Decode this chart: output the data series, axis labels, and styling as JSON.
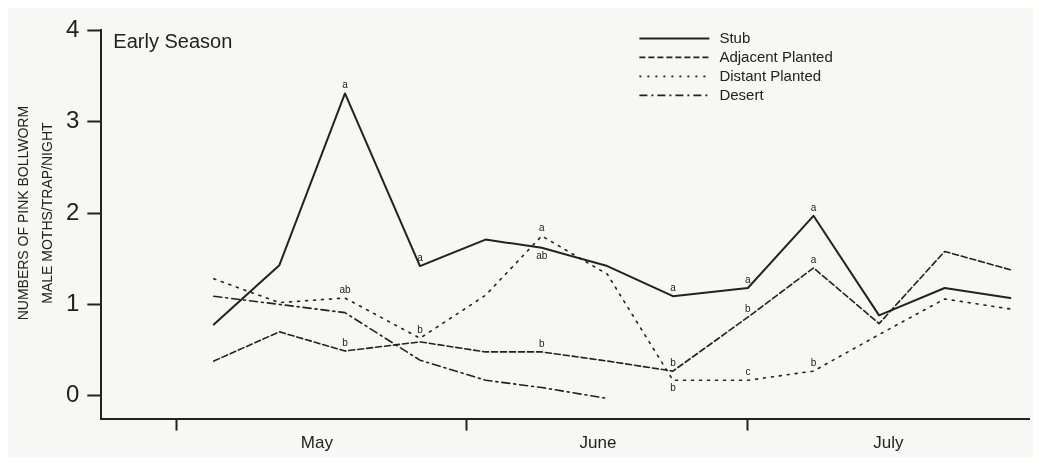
{
  "chart_data": {
    "type": "line",
    "title": "Early Season",
    "ylabel": "NUMBERS OF PINK BOLLWORM\nMALE MOTHS/TRAP/NIGHT",
    "x": [
      "--05-05",
      "--05-12",
      "--05-19",
      "--05-27",
      "--06-03",
      "--06-09",
      "--06-16",
      "--06-23",
      "--07-01",
      "--07-08",
      "--07-15",
      "--07-22",
      "--07-29"
    ],
    "series": [
      {
        "name": "Stub",
        "color": "#222222",
        "line_style": "solid",
        "values": [
          0.78,
          1.43,
          3.31,
          1.42,
          1.71,
          1.62,
          1.42,
          1.09,
          1.18,
          1.97,
          0.88,
          1.18,
          1.07
        ]
      },
      {
        "name": "Adjacent Planted",
        "color": "#222222",
        "line_style": "dashed",
        "values": [
          0.38,
          0.7,
          0.49,
          0.59,
          0.48,
          0.48,
          0.38,
          0.27,
          0.86,
          1.4,
          0.79,
          1.58,
          1.38
        ]
      },
      {
        "name": "Distant Planted",
        "color": "#222222",
        "line_style": "dotted",
        "values": [
          1.28,
          1.02,
          1.07,
          0.63,
          1.1,
          1.75,
          1.33,
          0.17,
          0.17,
          0.27,
          0.67,
          1.06,
          0.95
        ]
      },
      {
        "name": "Desert",
        "color": "#222222",
        "line_style": "dashdot",
        "values": [
          1.09,
          1.0,
          0.91,
          0.39,
          0.17,
          0.09,
          -0.03,
          null,
          null,
          null,
          null,
          null,
          null
        ]
      }
    ],
    "xlim": [
      "--04-23",
      "--07-31"
    ],
    "xticks": [
      {
        "value": "--05-01",
        "label": null
      },
      {
        "value": "--05-16",
        "label": "May"
      },
      {
        "value": "--06-01",
        "label": null
      },
      {
        "value": "--06-15",
        "label": "June"
      },
      {
        "value": "--07-01",
        "label": null
      },
      {
        "value": "--07-16",
        "label": "July"
      }
    ],
    "ylim": [
      -0.25,
      4
    ],
    "yticks": [
      0,
      1,
      2,
      3,
      4
    ],
    "grid": false,
    "legend": "top right",
    "marker": "none",
    "annotations": [
      {
        "text": "a",
        "x": "--05-19",
        "y": 3.31
      },
      {
        "text": "ab",
        "x": "--05-19",
        "y": 1.07
      },
      {
        "text": "b",
        "x": "--05-19",
        "y": 0.49
      },
      {
        "text": "a",
        "x": "--05-27",
        "y": 1.42
      },
      {
        "text": "b",
        "x": "--05-27",
        "y": 0.63
      },
      {
        "text": "a",
        "x": "--06-09",
        "y": 1.75
      },
      {
        "text": "ab",
        "x": "--06-09",
        "y": 1.62
      },
      {
        "text": "b",
        "x": "--06-09",
        "y": 0.48
      },
      {
        "text": "a",
        "x": "--06-23",
        "y": 1.09
      },
      {
        "text": "b",
        "x": "--06-23",
        "y": 0.27
      },
      {
        "text": "b",
        "x": "--06-23",
        "y": 0.17
      },
      {
        "text": "a",
        "x": "--07-01",
        "y": 1.18
      },
      {
        "text": "b",
        "x": "--07-01",
        "y": 0.86
      },
      {
        "text": "c",
        "x": "--07-01",
        "y": 0.17
      },
      {
        "text": "a",
        "x": "--07-08",
        "y": 1.97
      },
      {
        "text": "a",
        "x": "--07-08",
        "y": 1.4
      },
      {
        "text": "b",
        "x": "--07-08",
        "y": 0.27
      }
    ]
  }
}
